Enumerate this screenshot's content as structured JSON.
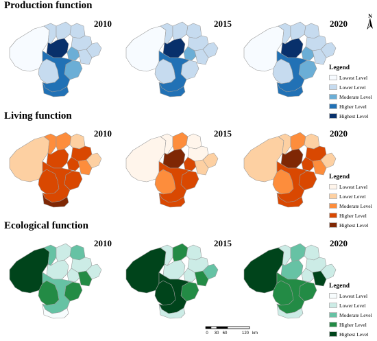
{
  "colors": {
    "border": "#9a9a9a",
    "production": [
      "#f7fbff",
      "#c6dbef",
      "#6baed6",
      "#2171b5",
      "#08306b"
    ],
    "living": [
      "#fff5eb",
      "#fdd0a2",
      "#fd8d3c",
      "#d94801",
      "#7f2704"
    ],
    "ecological": [
      "#f7fcfd",
      "#ccece6",
      "#66c2a4",
      "#238b45",
      "#00441b"
    ]
  },
  "legend": {
    "title": "Legend",
    "levels": [
      "Lowest Level",
      "Lower Level",
      "Moderate Level",
      "Higher Level",
      "Highest Level"
    ]
  },
  "compass": {
    "label": "N"
  },
  "scale_bar": {
    "ticks": [
      "0",
      "30",
      "60",
      "120"
    ],
    "unit": "km"
  },
  "sections": [
    {
      "key": "production",
      "title": "Production function",
      "maps": [
        {
          "year": "2010",
          "levels": [
            0,
            1,
            2,
            1,
            1,
            1,
            1,
            1,
            4,
            2,
            1,
            3,
            3
          ]
        },
        {
          "year": "2015",
          "levels": [
            0,
            1,
            1,
            1,
            1,
            1,
            1,
            1,
            4,
            2,
            1,
            3,
            3
          ]
        },
        {
          "year": "2020",
          "levels": [
            0,
            1,
            2,
            1,
            1,
            1,
            1,
            1,
            4,
            2,
            1,
            3,
            3
          ]
        }
      ]
    },
    {
      "key": "living",
      "title": "Living function",
      "maps": [
        {
          "year": "2010",
          "levels": [
            1,
            3,
            3,
            2,
            2,
            1,
            3,
            1,
            3,
            3,
            2,
            3,
            4
          ]
        },
        {
          "year": "2015",
          "levels": [
            0,
            2,
            3,
            0,
            2,
            0,
            0,
            1,
            4,
            3,
            1,
            3,
            3
          ]
        },
        {
          "year": "2020",
          "levels": [
            1,
            2,
            3,
            1,
            2,
            1,
            3,
            1,
            4,
            3,
            2,
            3,
            3
          ]
        }
      ]
    },
    {
      "key": "ecological",
      "title": "Ecological function",
      "maps": [
        {
          "year": "2010",
          "levels": [
            4,
            3,
            3,
            2,
            1,
            2,
            1,
            1,
            1,
            1,
            3,
            2,
            0
          ]
        },
        {
          "year": "2015",
          "levels": [
            4,
            4,
            3,
            1,
            3,
            1,
            1,
            2,
            1,
            1,
            3,
            4,
            1
          ]
        },
        {
          "year": "2020",
          "levels": [
            4,
            3,
            3,
            1,
            2,
            1,
            1,
            1,
            2,
            1,
            4,
            3,
            1
          ]
        }
      ]
    }
  ]
}
